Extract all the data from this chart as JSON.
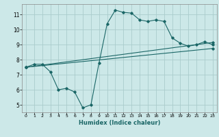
{
  "xlabel": "Humidex (Indice chaleur)",
  "xlim": [
    -0.5,
    23.5
  ],
  "ylim": [
    4.5,
    11.7
  ],
  "xticks": [
    0,
    1,
    2,
    3,
    4,
    5,
    6,
    7,
    8,
    9,
    10,
    11,
    12,
    13,
    14,
    15,
    16,
    17,
    18,
    19,
    20,
    21,
    22,
    23
  ],
  "yticks": [
    5,
    6,
    7,
    8,
    9,
    10,
    11
  ],
  "background_color": "#cce8e8",
  "grid_color": "#aacccc",
  "line_color": "#1a6666",
  "line1_x": [
    0,
    1,
    2,
    3,
    4,
    5,
    6,
    7,
    8,
    9,
    10,
    11,
    12,
    13,
    14,
    15,
    16,
    17,
    18,
    19,
    20,
    21,
    22,
    23
  ],
  "line1_y": [
    7.5,
    7.7,
    7.7,
    7.2,
    6.0,
    6.1,
    5.85,
    4.8,
    5.0,
    7.8,
    10.4,
    11.3,
    11.15,
    11.1,
    10.65,
    10.55,
    10.65,
    10.55,
    9.45,
    9.1,
    8.9,
    9.0,
    9.2,
    9.0
  ],
  "line2_x": [
    0,
    23
  ],
  "line2_y": [
    7.5,
    9.15
  ],
  "line3_x": [
    0,
    23
  ],
  "line3_y": [
    7.5,
    8.75
  ],
  "xlabel_fontsize": 6.0,
  "tick_fontsize_x": 4.5,
  "tick_fontsize_y": 5.5
}
